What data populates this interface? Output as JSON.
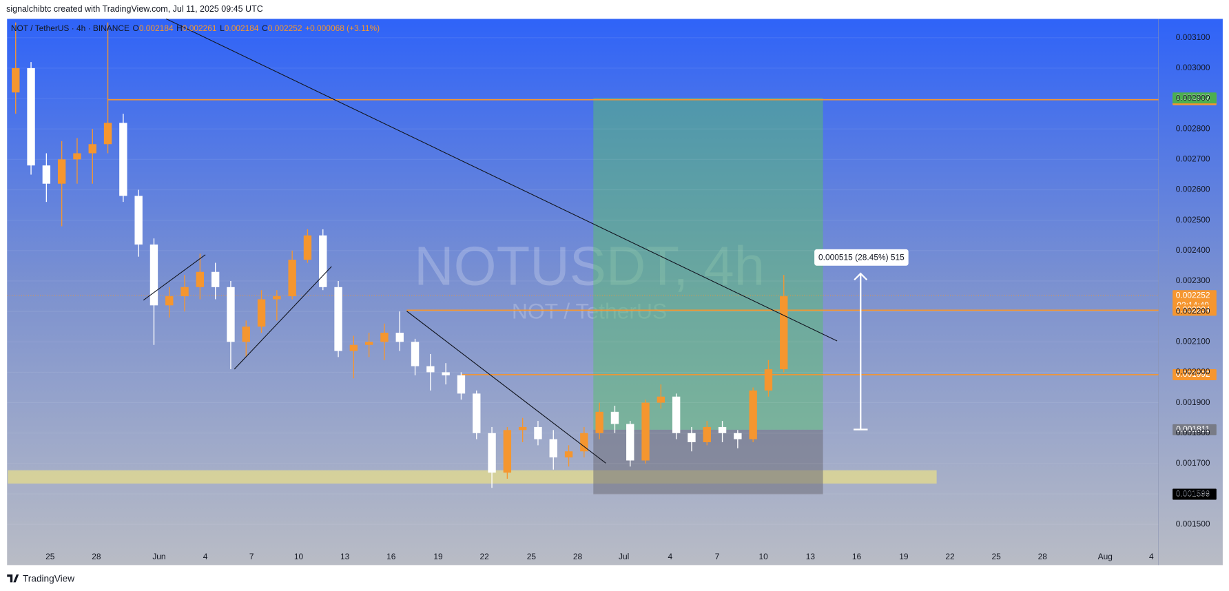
{
  "header": {
    "credit": "signalchibtc created with TradingView.com, Jul 11, 2025 09:45 UTC"
  },
  "legend": {
    "symbol": "NOT / TetherUS · 4h · BINANCE",
    "o": "O",
    "open": "0.002184",
    "h": "H",
    "high": "0.002261",
    "l": "L",
    "low": "0.002184",
    "c": "C",
    "close": "0.002252",
    "change": "+0.000068 (+3.11%)"
  },
  "watermark": {
    "title": "NOTUSDT, 4h",
    "subtitle": "NOT / TetherUS"
  },
  "footer": {
    "brand": "TradingView"
  },
  "chart_data": {
    "type": "candlestick",
    "open": [
      0.00292,
      0.003,
      0.00268,
      0.00262,
      0.0027,
      0.00272,
      0.00275,
      0.00282,
      0.00258,
      0.00242,
      0.00222,
      0.00225,
      0.00228,
      0.00233,
      0.00228,
      0.0021,
      0.00215,
      0.00224,
      0.00225,
      0.00237,
      0.00245,
      0.00228,
      0.00207,
      0.00209,
      0.0021,
      0.00213,
      0.0021,
      0.00202,
      0.002,
      0.00199,
      0.00193,
      0.0018,
      0.00167,
      0.00181,
      0.00182,
      0.00178,
      0.00172,
      0.00174,
      0.0018,
      0.00187,
      0.00183,
      0.00171,
      0.0019,
      0.00192,
      0.0018,
      0.00177,
      0.00182,
      0.0018,
      0.00178,
      0.00194,
      0.00201
    ],
    "high": [
      0.00315,
      0.00302,
      0.00272,
      0.00276,
      0.00277,
      0.0028,
      0.00315,
      0.00285,
      0.0026,
      0.00244,
      0.00228,
      0.00232,
      0.00239,
      0.00236,
      0.0023,
      0.00217,
      0.00227,
      0.00227,
      0.0024,
      0.00247,
      0.00247,
      0.0023,
      0.00212,
      0.00213,
      0.00216,
      0.0022,
      0.00211,
      0.00206,
      0.00203,
      0.002,
      0.00194,
      0.00182,
      0.00182,
      0.00185,
      0.00184,
      0.00181,
      0.00176,
      0.00182,
      0.0019,
      0.00189,
      0.00184,
      0.00191,
      0.00196,
      0.00193,
      0.00182,
      0.00184,
      0.00184,
      0.00181,
      0.00195,
      0.00204,
      0.00232
    ],
    "low": [
      0.00285,
      0.00265,
      0.00256,
      0.00248,
      0.00262,
      0.00262,
      0.00272,
      0.00256,
      0.00238,
      0.00209,
      0.00218,
      0.0022,
      0.00224,
      0.00224,
      0.00201,
      0.00205,
      0.00213,
      0.00217,
      0.00224,
      0.00236,
      0.00227,
      0.00205,
      0.00198,
      0.00205,
      0.00204,
      0.00207,
      0.00199,
      0.00194,
      0.00196,
      0.00191,
      0.00178,
      0.00162,
      0.00165,
      0.00177,
      0.00176,
      0.00168,
      0.00169,
      0.00172,
      0.00178,
      0.0018,
      0.00169,
      0.0017,
      0.00188,
      0.00178,
      0.00174,
      0.00176,
      0.00177,
      0.00175,
      0.00177,
      0.00192,
      0.002
    ],
    "close": [
      0.003,
      0.00268,
      0.00262,
      0.0027,
      0.00272,
      0.00275,
      0.00282,
      0.00258,
      0.00242,
      0.00222,
      0.00225,
      0.00228,
      0.00233,
      0.00228,
      0.0021,
      0.00215,
      0.00224,
      0.00225,
      0.00237,
      0.00245,
      0.00228,
      0.00207,
      0.00209,
      0.0021,
      0.00213,
      0.0021,
      0.00202,
      0.002,
      0.00199,
      0.00193,
      0.0018,
      0.00167,
      0.00181,
      0.00182,
      0.00178,
      0.00172,
      0.00174,
      0.0018,
      0.00187,
      0.00183,
      0.00171,
      0.0019,
      0.00192,
      0.0018,
      0.00177,
      0.00182,
      0.0018,
      0.00178,
      0.00194,
      0.00201,
      0.00225
    ],
    "up_color": "#f5962f",
    "down_color": "#ffffff",
    "ylim": [
      0.001366,
      0.003162
    ],
    "yticks": [
      {
        "value": 0.0015,
        "label": "0.001500"
      },
      {
        "value": 0.0016,
        "label": "0.001600"
      },
      {
        "value": 0.0017,
        "label": "0.001700"
      },
      {
        "value": 0.0018,
        "label": "0.001800"
      },
      {
        "value": 0.0019,
        "label": "0.001900"
      },
      {
        "value": 0.002,
        "label": "0.002000"
      },
      {
        "value": 0.0021,
        "label": "0.002100"
      },
      {
        "value": 0.0022,
        "label": "0.002200"
      },
      {
        "value": 0.0023,
        "label": "0.002300"
      },
      {
        "value": 0.0024,
        "label": "0.002400"
      },
      {
        "value": 0.0025,
        "label": "0.002500"
      },
      {
        "value": 0.0026,
        "label": "0.002600"
      },
      {
        "value": 0.0027,
        "label": "0.002700"
      },
      {
        "value": 0.0028,
        "label": "0.002800"
      },
      {
        "value": 0.0029,
        "label": "0.002900"
      },
      {
        "value": 0.003,
        "label": "0.003000"
      },
      {
        "value": 0.0031,
        "label": "0.003100"
      }
    ],
    "xticks": [
      "25",
      "28",
      "Jun",
      "4",
      "7",
      "10",
      "13",
      "16",
      "19",
      "22",
      "25",
      "28",
      "Jul",
      "4",
      "7",
      "10",
      "13",
      "16",
      "19",
      "22",
      "25",
      "28",
      "Aug",
      "4"
    ],
    "levels": [
      {
        "value": 0.002896,
        "label": "0.002896",
        "color": "#f5962f"
      },
      {
        "value": 0.002204,
        "label": "0.002204",
        "color": "#f5962f"
      },
      {
        "value": 0.001992,
        "label": "0.001992",
        "color": "#f5962f"
      }
    ],
    "position": {
      "target": 0.002902,
      "target_label": "0.002902",
      "target_color": "#4caf50",
      "entry": 0.001811,
      "entry_label": "0.001811",
      "entry_color": "#787b86",
      "stop": 0.001599,
      "stop_label": "0.001599",
      "stop_color": "#000000"
    },
    "last_price": {
      "value": 0.002252,
      "label": "0.002252",
      "countdown": "02:14:49",
      "color": "#f5962f"
    },
    "measure": {
      "label": "0.000515 (28.45%) 515"
    }
  }
}
